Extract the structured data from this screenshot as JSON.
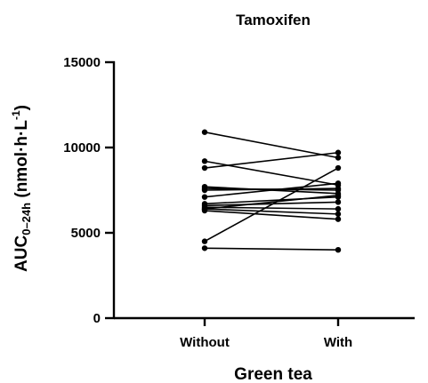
{
  "chart_data": {
    "type": "line",
    "title": "Tamoxifen",
    "xlabel": "Green tea",
    "ylabel": {
      "main": "AUC",
      "sub": "0–24h",
      "units_prefix": " (nmol·h·L",
      "units_sup": "-1",
      "units_suffix": ")"
    },
    "categories": [
      "Without",
      "With"
    ],
    "ylim": [
      0,
      15000
    ],
    "yticks": [
      0,
      5000,
      10000,
      15000
    ],
    "ytick_labels": [
      "0",
      "5000",
      "10000",
      "15000"
    ],
    "grid": false,
    "legend": "none",
    "color": "#000000",
    "pairs": [
      [
        10900,
        9400
      ],
      [
        9200,
        7800
      ],
      [
        8800,
        9700
      ],
      [
        7700,
        7300
      ],
      [
        7600,
        7500
      ],
      [
        7500,
        7600
      ],
      [
        7100,
        7900
      ],
      [
        6700,
        7100
      ],
      [
        6600,
        6800
      ],
      [
        6500,
        6400
      ],
      [
        6400,
        7200
      ],
      [
        6400,
        6100
      ],
      [
        6300,
        5800
      ],
      [
        4500,
        8800
      ],
      [
        4100,
        4000
      ]
    ]
  }
}
